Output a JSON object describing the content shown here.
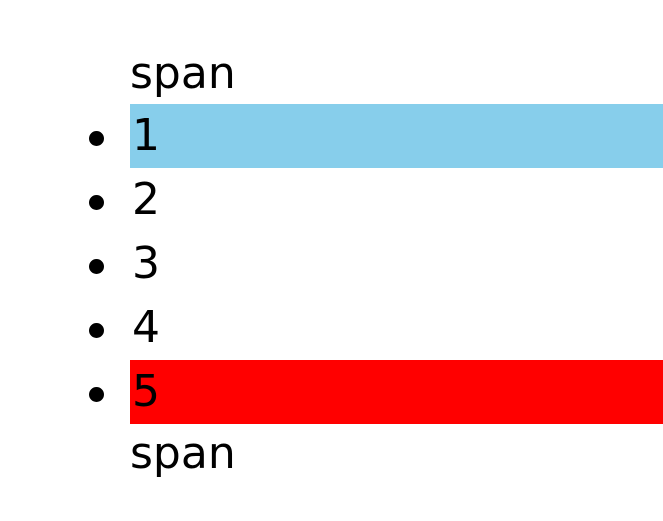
{
  "top_span": "span",
  "bottom_span": "span",
  "list": {
    "items": [
      {
        "label": "1",
        "highlight": "#87ceeb"
      },
      {
        "label": "2"
      },
      {
        "label": "3"
      },
      {
        "label": "4"
      },
      {
        "label": "5",
        "highlight": "#ff0000"
      }
    ]
  }
}
